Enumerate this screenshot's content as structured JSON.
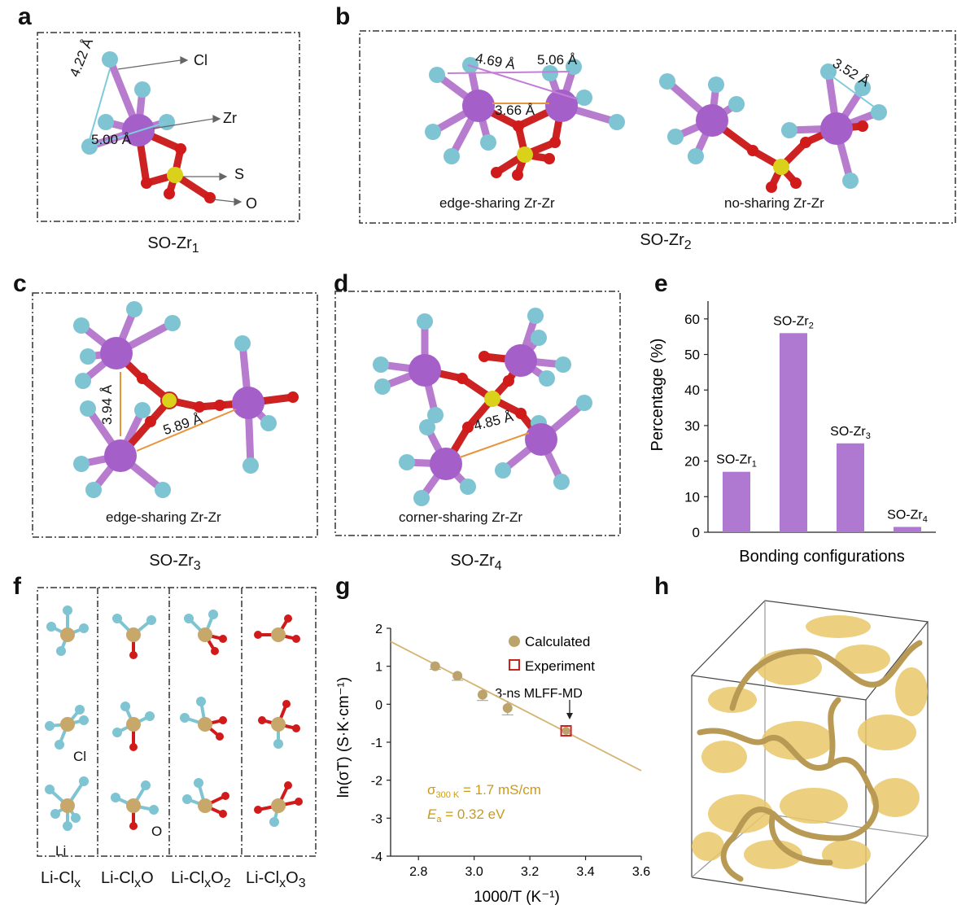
{
  "panels": {
    "a": {
      "label": "a",
      "title": "SO-Zr",
      "sub": "1",
      "cl": "Cl",
      "zr": "Zr",
      "s": "S",
      "o": "O",
      "d1": "4.22 Å",
      "d2": "5.00 Å"
    },
    "b": {
      "label": "b",
      "title": "SO-Zr",
      "sub": "2",
      "left_caption": "edge-sharing Zr-Zr",
      "right_caption": "no-sharing Zr-Zr",
      "d1": "4.69 Å",
      "d2": "5.06 Å",
      "d3": "3.66 Å",
      "d4": "3.52 Å"
    },
    "c": {
      "label": "c",
      "title": "SO-Zr",
      "sub": "3",
      "caption": "edge-sharing Zr-Zr",
      "d1": "3.94 Å",
      "d2": "5.89 Å"
    },
    "d": {
      "label": "d",
      "title": "SO-Zr",
      "sub": "4",
      "caption": "corner-sharing Zr-Zr",
      "d1": "4.85 Å"
    },
    "e": {
      "label": "e"
    },
    "f": {
      "label": "f",
      "cl": "Cl",
      "li": "Li",
      "o": "O",
      "columns": [
        {
          "base": "Li-Cl",
          "sub": "x",
          "tail": "",
          "tailsub": ""
        },
        {
          "base": "Li-Cl",
          "sub": "x",
          "tail": "O",
          "tailsub": ""
        },
        {
          "base": "Li-Cl",
          "sub": "x",
          "tail": "O",
          "tailsub": "2"
        },
        {
          "base": "Li-Cl",
          "sub": "x",
          "tail": "O",
          "tailsub": "3"
        }
      ]
    },
    "g": {
      "label": "g",
      "legend_calc": "Calculated",
      "legend_exp": "Experiment",
      "annotation": "3-ns MLFF-MD",
      "sigma_sym": "σ",
      "sigma_sub": "300 K",
      "sigma_val": " = 1.7 mS/cm",
      "ea_sym": "E",
      "ea_sub": "a",
      "ea_val": " = 0.32 eV",
      "ylabel": "ln(σT) (S·K·cm⁻¹)",
      "xlabel": "1000/T (K⁻¹)"
    },
    "h": {
      "label": "h"
    }
  },
  "chart_data": [
    {
      "type": "bar",
      "id": "e",
      "categories": [
        "SO-Zr1",
        "SO-Zr2",
        "SO-Zr3",
        "SO-Zr4"
      ],
      "category_labels": [
        {
          "base": "SO-Zr",
          "sub": "1"
        },
        {
          "base": "SO-Zr",
          "sub": "2"
        },
        {
          "base": "SO-Zr",
          "sub": "3"
        },
        {
          "base": "SO-Zr",
          "sub": "4"
        }
      ],
      "values": [
        17,
        56,
        25,
        1.5
      ],
      "ylabel": "Percentage (%)",
      "xlabel": "Bonding configurations",
      "ylim": [
        0,
        65
      ],
      "yticks": [
        0,
        10,
        20,
        30,
        40,
        50,
        60
      ],
      "color": "#b079d1"
    },
    {
      "type": "scatter",
      "id": "g",
      "series": [
        {
          "name": "Calculated",
          "x": [
            2.86,
            2.94,
            3.03,
            3.12
          ],
          "y": [
            1.0,
            0.75,
            0.25,
            -0.1
          ],
          "err": [
            0.08,
            0.12,
            0.15,
            0.18
          ],
          "color": "#bca36b"
        },
        {
          "name": "Experiment",
          "x": [
            3.33
          ],
          "y": [
            -0.7
          ],
          "color": "#cc2222"
        }
      ],
      "fit_line": {
        "x": [
          2.7,
          3.6
        ],
        "y": [
          1.65,
          -1.75
        ],
        "color": "#d4b471"
      },
      "xlim": [
        2.7,
        3.6
      ],
      "ylim": [
        -4,
        2
      ],
      "xticks": [
        2.8,
        3.0,
        3.2,
        3.4,
        3.6
      ],
      "yticks": [
        -4,
        -3,
        -2,
        -1,
        0,
        1,
        2
      ],
      "xlabel": "1000/T (K⁻¹)",
      "ylabel": "ln(σT) (S·K·cm⁻¹)"
    }
  ],
  "colors": {
    "zr": "#a55fc9",
    "cl": "#7ec4d2",
    "o": "#d11a1a",
    "s": "#d9d11a",
    "li": "#c7a86a",
    "arrow_cyan": "#7ecbdc",
    "arrow_orange": "#e8943c",
    "arrow_pink": "#c27fd6",
    "gold_text": "#c99a1a"
  }
}
